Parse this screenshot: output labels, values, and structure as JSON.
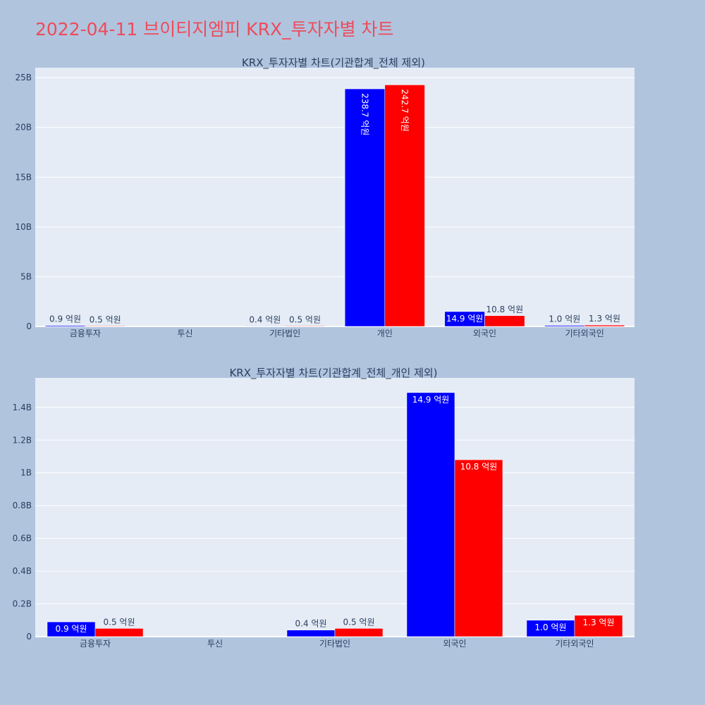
{
  "page_title": "2022-04-11 브이티지엠피 KRX_투자자별 차트",
  "colors": {
    "background": "#b0c4de",
    "plot_bg": "#e5ecf6",
    "series_a": "#0000ff",
    "series_b": "#ff0000",
    "title": "#ee4b5a"
  },
  "chart_data": [
    {
      "type": "bar",
      "title": "KRX_투자자별 차트(기관합계_전체 제외)",
      "categories": [
        "금융투자",
        "투신",
        "기타법인",
        "개인",
        "외국인",
        "기타외국인"
      ],
      "ylim": [
        0,
        26000000000
      ],
      "yticks": [
        0,
        5000000000,
        10000000000,
        15000000000,
        20000000000,
        25000000000
      ],
      "ytick_labels": [
        "0",
        "5B",
        "10B",
        "15B",
        "20B",
        "25B"
      ],
      "series": [
        {
          "values": [
            90000000,
            null,
            40000000,
            23870000000,
            1490000000,
            100000000
          ],
          "labels": [
            "0.9 억원",
            "",
            "0.4 억원",
            "238.7 억원",
            "14.9 억원",
            "1.0 억원"
          ]
        },
        {
          "values": [
            50000000,
            null,
            50000000,
            24270000000,
            1080000000,
            130000000
          ],
          "labels": [
            "0.5 억원",
            "",
            "0.5 억원",
            "242.7 억원",
            "10.8 억원",
            "1.3 억원"
          ]
        }
      ],
      "grid": true
    },
    {
      "type": "bar",
      "title": "KRX_투자자별 차트(기관합계_전체_개인 제외)",
      "categories": [
        "금융투자",
        "투신",
        "기타법인",
        "외국인",
        "기타외국인"
      ],
      "ylim": [
        0,
        1580000000
      ],
      "yticks": [
        0,
        200000000,
        400000000,
        600000000,
        800000000,
        1000000000,
        1200000000,
        1400000000
      ],
      "ytick_labels": [
        "0",
        "0.2B",
        "0.4B",
        "0.6B",
        "0.8B",
        "1B",
        "1.2B",
        "1.4B"
      ],
      "series": [
        {
          "values": [
            90000000,
            null,
            40000000,
            1490000000,
            100000000
          ],
          "labels": [
            "0.9 억원",
            "",
            "0.4 억원",
            "14.9 억원",
            "1.0 억원"
          ]
        },
        {
          "values": [
            50000000,
            null,
            50000000,
            1080000000,
            130000000
          ],
          "labels": [
            "0.5 억원",
            "",
            "0.5 억원",
            "10.8 억원",
            "1.3 억원"
          ]
        }
      ],
      "grid": true
    }
  ]
}
